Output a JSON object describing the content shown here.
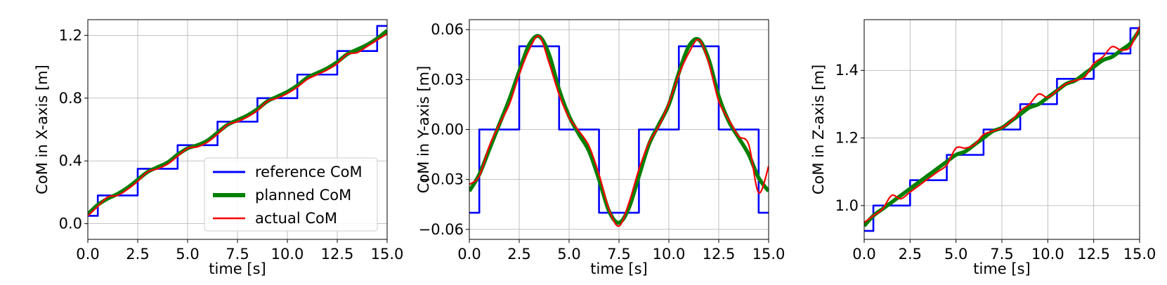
{
  "chart_data": [
    {
      "type": "line",
      "xlabel": "time [s]",
      "ylabel": "CoM in X-axis [m]",
      "xlim": [
        0,
        15
      ],
      "ylim": [
        -0.1,
        1.3
      ],
      "xticks": [
        0,
        2.5,
        5,
        7.5,
        10,
        12.5,
        15
      ],
      "xtick_labels": [
        "0.0",
        "2.5",
        "5.0",
        "7.5",
        "10.0",
        "12.5",
        "15.0"
      ],
      "yticks": [
        0,
        0.4,
        0.8,
        1.2
      ],
      "ytick_labels": [
        "0.0",
        "0.4",
        "0.8",
        "1.2"
      ],
      "grid": true,
      "legend": "lower-right",
      "series": [
        {
          "name": "reference CoM",
          "color": "#0000ff",
          "step": true,
          "x": [
            0,
            0.5,
            2.5,
            4.5,
            6.5,
            8.5,
            10.5,
            12.5,
            14.5,
            15
          ],
          "y": [
            0.05,
            0.18,
            0.35,
            0.5,
            0.65,
            0.8,
            0.95,
            1.1,
            1.26,
            1.26
          ]
        },
        {
          "name": "planned CoM",
          "color": "#008000",
          "x": [
            0,
            0.5,
            1.0,
            1.5,
            2.0,
            2.5,
            3.0,
            3.5,
            4.0,
            4.5,
            5.0,
            5.5,
            6.0,
            6.5,
            7.0,
            7.5,
            8.0,
            8.5,
            9.0,
            9.5,
            10.0,
            10.5,
            11.0,
            11.5,
            12.0,
            12.5,
            13.0,
            13.5,
            14.0,
            14.5,
            15.0
          ],
          "y": [
            0.06,
            0.12,
            0.16,
            0.19,
            0.23,
            0.28,
            0.33,
            0.36,
            0.39,
            0.44,
            0.48,
            0.5,
            0.53,
            0.58,
            0.63,
            0.66,
            0.69,
            0.73,
            0.78,
            0.81,
            0.84,
            0.88,
            0.93,
            0.96,
            0.99,
            1.03,
            1.08,
            1.11,
            1.14,
            1.18,
            1.23
          ]
        },
        {
          "name": "actual CoM",
          "color": "#ff0000",
          "x": [
            0,
            0.5,
            1.0,
            1.5,
            2.0,
            2.5,
            3.0,
            3.5,
            4.0,
            4.5,
            5.0,
            5.5,
            6.0,
            6.5,
            7.0,
            7.5,
            8.0,
            8.5,
            9.0,
            9.5,
            10.0,
            10.5,
            11.0,
            11.5,
            12.0,
            12.5,
            13.0,
            13.5,
            14.0,
            14.5,
            15.0
          ],
          "y": [
            0.05,
            0.11,
            0.17,
            0.18,
            0.22,
            0.27,
            0.33,
            0.35,
            0.38,
            0.43,
            0.48,
            0.49,
            0.52,
            0.57,
            0.63,
            0.65,
            0.68,
            0.72,
            0.78,
            0.8,
            0.83,
            0.87,
            0.92,
            0.95,
            0.98,
            1.02,
            1.08,
            1.09,
            1.13,
            1.17,
            1.21
          ]
        }
      ]
    },
    {
      "type": "line",
      "xlabel": "time [s]",
      "ylabel": "CoM in Y-axis [m]",
      "xlim": [
        0,
        15
      ],
      "ylim": [
        -0.066,
        0.066
      ],
      "xticks": [
        0,
        2.5,
        5,
        7.5,
        10,
        12.5,
        15
      ],
      "xtick_labels": [
        "0.0",
        "2.5",
        "5.0",
        "7.5",
        "10.0",
        "12.5",
        "15.0"
      ],
      "yticks": [
        -0.06,
        -0.03,
        0,
        0.03,
        0.06
      ],
      "ytick_labels": [
        "−0.06",
        "−0.03",
        "0.00",
        "0.03",
        "0.06"
      ],
      "grid": true,
      "series": [
        {
          "name": "reference CoM",
          "color": "#0000ff",
          "step": true,
          "x": [
            0,
            0.5,
            2.5,
            4.5,
            6.5,
            8.5,
            10.5,
            12.5,
            14.5,
            15
          ],
          "y": [
            -0.05,
            0.0,
            0.05,
            0.0,
            -0.05,
            0.0,
            0.05,
            0.0,
            -0.05,
            -0.05
          ]
        },
        {
          "name": "planned CoM",
          "color": "#008000",
          "x": [
            0,
            0.5,
            1.0,
            1.5,
            2.0,
            2.5,
            3.0,
            3.5,
            4.0,
            4.5,
            5.0,
            5.5,
            6.0,
            6.5,
            7.0,
            7.5,
            8.0,
            8.5,
            9.0,
            9.5,
            10.0,
            10.5,
            11.0,
            11.5,
            12.0,
            12.5,
            13.0,
            13.5,
            14.0,
            14.5,
            15.0
          ],
          "y": [
            -0.037,
            -0.027,
            -0.012,
            0.003,
            0.018,
            0.035,
            0.051,
            0.056,
            0.045,
            0.024,
            0.008,
            -0.003,
            -0.013,
            -0.03,
            -0.049,
            -0.056,
            -0.047,
            -0.028,
            -0.009,
            0.003,
            0.015,
            0.034,
            0.05,
            0.054,
            0.042,
            0.02,
            0.005,
            -0.005,
            -0.015,
            -0.029,
            -0.037
          ]
        },
        {
          "name": "actual CoM",
          "color": "#ff0000",
          "x": [
            0,
            0.5,
            1.0,
            1.5,
            2.0,
            2.5,
            3.0,
            3.5,
            4.0,
            4.5,
            5.0,
            5.5,
            6.0,
            6.5,
            7.0,
            7.5,
            8.0,
            8.5,
            9.0,
            9.5,
            10.0,
            10.5,
            11.0,
            11.5,
            12.0,
            12.5,
            13.0,
            13.5,
            14.0,
            14.5,
            15.0
          ],
          "y": [
            -0.033,
            -0.028,
            -0.01,
            0.003,
            0.015,
            0.033,
            0.048,
            0.056,
            0.04,
            0.021,
            0.007,
            -0.001,
            -0.01,
            -0.027,
            -0.048,
            -0.058,
            -0.044,
            -0.024,
            -0.008,
            0.002,
            0.016,
            0.033,
            0.046,
            0.054,
            0.04,
            0.017,
            0.006,
            -0.004,
            -0.009,
            -0.038,
            -0.022
          ]
        }
      ]
    },
    {
      "type": "line",
      "xlabel": "time [s]",
      "ylabel": "CoM in Z-axis [m]",
      "xlim": [
        0,
        15
      ],
      "ylim": [
        0.9,
        1.55
      ],
      "xticks": [
        0,
        2.5,
        5,
        7.5,
        10,
        12.5,
        15
      ],
      "xtick_labels": [
        "0.0",
        "2.5",
        "5.0",
        "7.5",
        "10.0",
        "12.5",
        "15.0"
      ],
      "yticks": [
        1.0,
        1.2,
        1.4
      ],
      "ytick_labels": [
        "1.0",
        "1.2",
        "1.4"
      ],
      "grid": true,
      "series": [
        {
          "name": "reference CoM",
          "color": "#0000ff",
          "step": true,
          "x": [
            0,
            0.5,
            2.5,
            4.5,
            6.5,
            8.5,
            10.5,
            12.5,
            14.5,
            15
          ],
          "y": [
            0.925,
            1.0,
            1.075,
            1.15,
            1.225,
            1.3,
            1.375,
            1.45,
            1.525,
            1.525
          ]
        },
        {
          "name": "planned CoM",
          "color": "#008000",
          "x": [
            0,
            0.5,
            1.0,
            1.5,
            2.0,
            2.5,
            3.0,
            3.5,
            4.0,
            4.5,
            5.0,
            5.5,
            6.0,
            6.5,
            7.0,
            7.5,
            8.0,
            8.5,
            9.0,
            9.5,
            10.0,
            10.5,
            11.0,
            11.5,
            12.0,
            12.5,
            13.0,
            13.5,
            14.0,
            14.5,
            15.0
          ],
          "y": [
            0.94,
            0.97,
            0.99,
            1.01,
            1.03,
            1.05,
            1.07,
            1.09,
            1.11,
            1.13,
            1.15,
            1.16,
            1.18,
            1.2,
            1.22,
            1.23,
            1.25,
            1.27,
            1.29,
            1.3,
            1.32,
            1.34,
            1.36,
            1.37,
            1.39,
            1.41,
            1.43,
            1.44,
            1.46,
            1.48,
            1.52
          ]
        },
        {
          "name": "actual CoM",
          "color": "#ff0000",
          "x": [
            0,
            0.5,
            1.0,
            1.5,
            2.0,
            2.5,
            3.0,
            3.5,
            4.0,
            4.5,
            5.0,
            5.5,
            6.0,
            6.5,
            7.0,
            7.5,
            8.0,
            8.5,
            9.0,
            9.5,
            10.0,
            10.5,
            11.0,
            11.5,
            12.0,
            12.5,
            13.0,
            13.5,
            14.0,
            14.5,
            15.0
          ],
          "y": [
            0.95,
            0.97,
            0.99,
            1.03,
            1.02,
            1.04,
            1.06,
            1.08,
            1.1,
            1.12,
            1.17,
            1.17,
            1.18,
            1.21,
            1.22,
            1.23,
            1.25,
            1.28,
            1.3,
            1.33,
            1.32,
            1.34,
            1.36,
            1.37,
            1.38,
            1.42,
            1.44,
            1.47,
            1.46,
            1.47,
            1.53
          ]
        }
      ]
    }
  ]
}
